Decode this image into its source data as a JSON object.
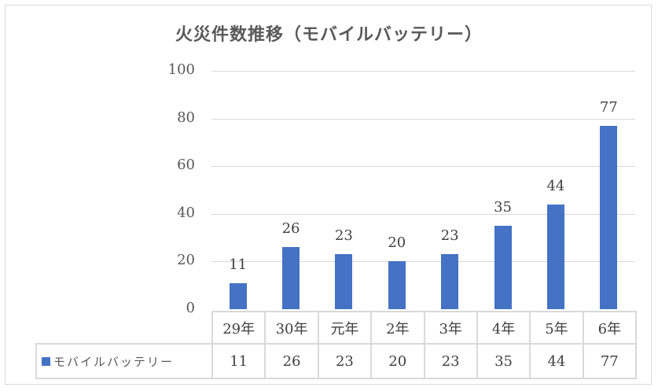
{
  "chart_data": {
    "type": "bar",
    "title": "火災件数推移（モバイルバッテリー）",
    "categories": [
      "29年",
      "30年",
      "元年",
      "2年",
      "3年",
      "4年",
      "5年",
      "6年"
    ],
    "series": [
      {
        "name": "モバイルバッテリー",
        "values": [
          11,
          26,
          23,
          20,
          23,
          35,
          44,
          77
        ],
        "color": "#4472c4"
      }
    ],
    "xlabel": "",
    "ylabel": "",
    "ylim": [
      0,
      100
    ],
    "yticks": [
      0,
      20,
      40,
      60,
      80,
      100
    ],
    "grid": true,
    "data_labels": true,
    "legend_position": "data-table"
  },
  "labels": {
    "title": "火災件数推移（モバイルバッテリー）",
    "yticks": [
      "0",
      "20",
      "40",
      "60",
      "80",
      "100"
    ],
    "categories": [
      "29年",
      "30年",
      "元年",
      "2年",
      "3年",
      "4年",
      "5年",
      "6年"
    ],
    "series_name": "モバイルバッテリー",
    "values": [
      "11",
      "26",
      "23",
      "20",
      "23",
      "35",
      "44",
      "77"
    ]
  }
}
